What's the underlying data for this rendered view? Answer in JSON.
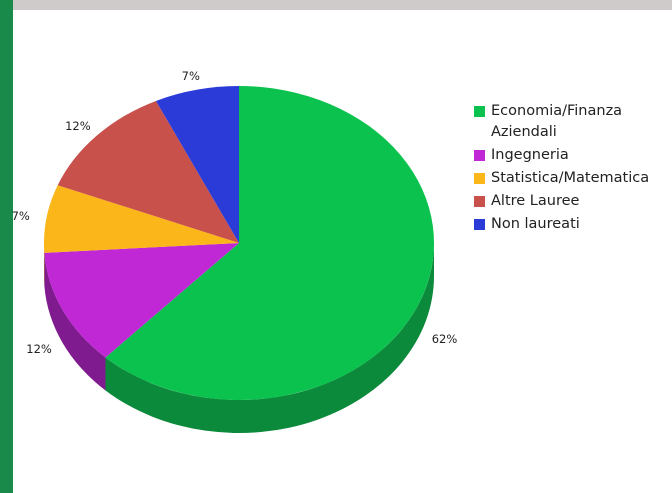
{
  "chart_data": {
    "type": "pie",
    "categories": [
      "Economia/Finanza\nAziendali",
      "Ingegneria",
      "Statistica/Matematica",
      "Altre Lauree",
      "Non laureati"
    ],
    "values": [
      62,
      12,
      7,
      12,
      7
    ],
    "value_labels": [
      "62%",
      "12%",
      "7%",
      "12%",
      "7%"
    ],
    "colors": [
      "#0bc24e",
      "#bf28d4",
      "#fbb61a",
      "#c9514c",
      "#2a3bd8"
    ],
    "side_colors": [
      "#0a8a3a",
      "#7f1a8f",
      "#b07a10",
      "#8a3532",
      "#1c2895"
    ],
    "style": "3d-perspective",
    "legend_position": "right"
  }
}
